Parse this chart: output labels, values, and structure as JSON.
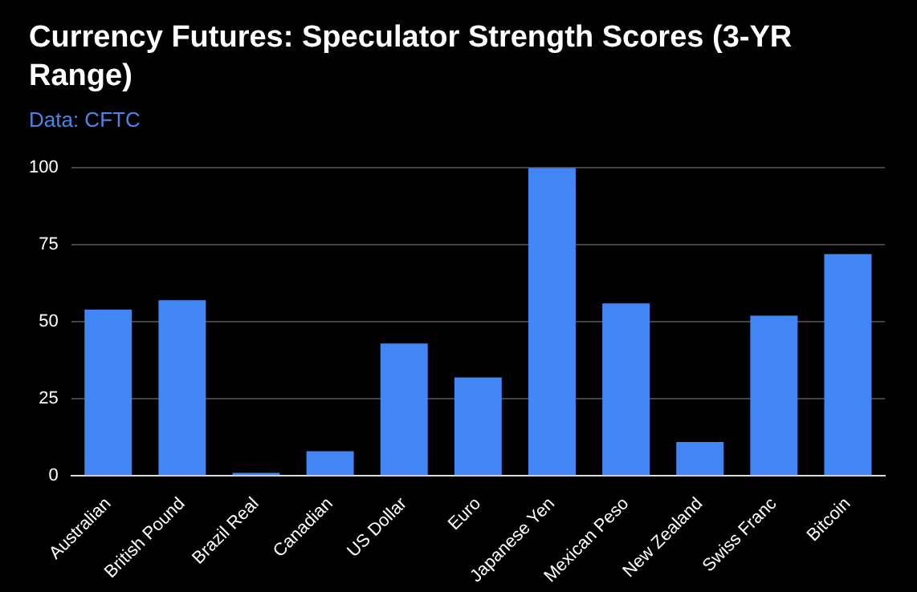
{
  "chart_data": {
    "type": "bar",
    "title": "Currency Futures: Speculator Strength Scores (3-YR Range)",
    "subtitle": "Data: CFTC",
    "categories": [
      "Australian",
      "British Pound",
      "Brazil Real",
      "Canadian",
      "US Dollar",
      "Euro",
      "Japanese Yen",
      "Mexican Peso",
      "New Zealand",
      "Swiss Franc",
      "Bitcoin"
    ],
    "values": [
      54,
      57,
      1,
      8,
      43,
      32,
      100,
      56,
      11,
      52,
      72
    ],
    "color": "#4285f4",
    "ylim": [
      0,
      100
    ],
    "yticks": [
      0,
      25,
      50,
      75,
      100
    ],
    "grid": "y"
  }
}
